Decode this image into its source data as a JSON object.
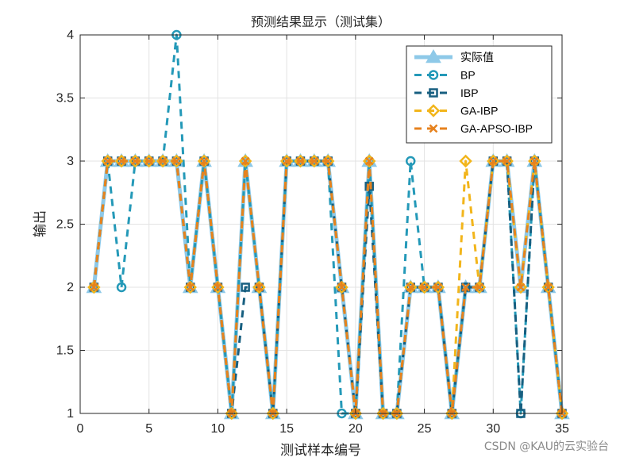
{
  "chart_data": {
    "type": "line",
    "title": "预测结果显示（测试集）",
    "xlabel": "测试样本编号",
    "ylabel": "输出",
    "xlim": [
      0,
      35
    ],
    "ylim": [
      1,
      4
    ],
    "xticks": [
      0,
      5,
      10,
      15,
      20,
      25,
      30,
      35
    ],
    "yticks": [
      1,
      1.5,
      2,
      2.5,
      3,
      3.5,
      4
    ],
    "grid": true,
    "legend_position": "top-right",
    "x": [
      1,
      2,
      3,
      4,
      5,
      6,
      7,
      8,
      9,
      10,
      11,
      12,
      13,
      14,
      15,
      16,
      17,
      18,
      19,
      20,
      21,
      22,
      23,
      24,
      25,
      26,
      27,
      28,
      29,
      30,
      31,
      32,
      33,
      34,
      35
    ],
    "series": [
      {
        "name": "实际值",
        "color": "#8ec9e8",
        "dash": "",
        "width": 5,
        "marker": "triangle",
        "values": [
          2,
          3,
          3,
          3,
          3,
          3,
          3,
          2,
          3,
          2,
          1,
          3,
          2,
          1,
          3,
          3,
          3,
          3,
          2,
          1,
          3,
          1,
          1,
          2,
          2,
          2,
          1,
          2,
          2,
          3,
          3,
          2,
          3,
          2,
          1
        ]
      },
      {
        "name": "BP",
        "color": "#2499b8",
        "dash": "9,7",
        "width": 3,
        "marker": "circle",
        "values": [
          2,
          3,
          2,
          3,
          3,
          3,
          4,
          2,
          3,
          2,
          1,
          3,
          2,
          1,
          3,
          3,
          3,
          3,
          1,
          1,
          3,
          1,
          1,
          3,
          2,
          2,
          1,
          2,
          2,
          3,
          3,
          1,
          3,
          2,
          1
        ]
      },
      {
        "name": "IBP",
        "color": "#175f80",
        "dash": "9,7",
        "width": 3,
        "marker": "square",
        "values": [
          2,
          3,
          3,
          3,
          3,
          3,
          3,
          2,
          3,
          2,
          1,
          2,
          2,
          1,
          3,
          3,
          3,
          3,
          2,
          1,
          2.8,
          1,
          1,
          2,
          2,
          2,
          1,
          2,
          2,
          3,
          3,
          1,
          3,
          2,
          1
        ]
      },
      {
        "name": "GA-IBP",
        "color": "#f2b51b",
        "dash": "9,7",
        "width": 3,
        "marker": "diamond",
        "values": [
          2,
          3,
          3,
          3,
          3,
          3,
          3,
          2,
          3,
          2,
          1,
          3,
          2,
          1,
          3,
          3,
          3,
          3,
          2,
          1,
          3,
          1,
          1,
          2,
          2,
          2,
          1,
          3,
          2,
          3,
          3,
          2,
          3,
          2,
          1
        ]
      },
      {
        "name": "GA-APSO-IBP",
        "color": "#e6821e",
        "dash": "9,7",
        "width": 3,
        "marker": "x",
        "values": [
          2,
          3,
          3,
          3,
          3,
          3,
          3,
          2,
          3,
          2,
          1,
          3,
          2,
          1,
          3,
          3,
          3,
          3,
          2,
          1,
          3,
          1,
          1,
          2,
          2,
          2,
          1,
          2,
          2,
          3,
          3,
          2,
          3,
          2,
          1
        ]
      }
    ]
  },
  "watermark": "CSDN @KAU的云实验台"
}
